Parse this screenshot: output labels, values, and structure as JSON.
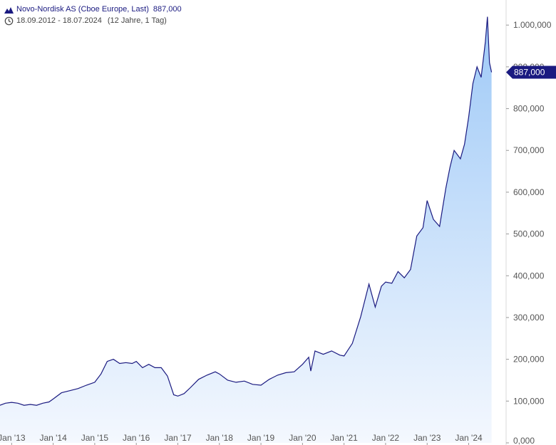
{
  "legend": {
    "series_name": "Novo-Nordisk AS (Cboe Europe, Last)",
    "last_value": "887,000",
    "date_range": "18.09.2012 - 18.07.2024",
    "duration": "(12 Jahre, 1 Tag)",
    "icons": [
      "mountain-chart-icon",
      "clock-icon"
    ]
  },
  "colors": {
    "line": "#1a1a80",
    "fill_top": "#9ec9f7",
    "fill_bottom": "#f4f8fe",
    "price_label_bg": "#1a1a80",
    "grid": "#d8d8d8",
    "axis_text": "#555555"
  },
  "chart_data": {
    "type": "area",
    "title": "Novo-Nordisk AS (Cboe Europe, Last)",
    "last_value": 887,
    "last_value_label": "887,000",
    "x_start": "2012-09-18",
    "x_end": "2024-07-18",
    "xlim": [
      2012.72,
      2024.9
    ],
    "ylim": [
      0,
      1060
    ],
    "y_ticks": [
      0,
      100,
      200,
      300,
      400,
      500,
      600,
      700,
      800,
      900,
      1000
    ],
    "y_tick_labels": [
      "0,000",
      "100,000",
      "200,000",
      "300,000",
      "400,000",
      "500,000",
      "600,000",
      "700,000",
      "800,000",
      "900,000",
      "1.000,000"
    ],
    "x_ticks": [
      2013,
      2014,
      2015,
      2016,
      2017,
      2018,
      2019,
      2020,
      2021,
      2022,
      2023,
      2024
    ],
    "x_tick_labels": [
      "Jan '13",
      "Jan '14",
      "Jan '15",
      "Jan '16",
      "Jan '17",
      "Jan '18",
      "Jan '19",
      "Jan '20",
      "Jan '21",
      "Jan '22",
      "Jan '23",
      "Jan '24"
    ],
    "grid": false,
    "series": [
      {
        "name": "Novo-Nordisk AS (Cboe Europe, Last)",
        "x": [
          2012.72,
          2012.85,
          2013.0,
          2013.15,
          2013.3,
          2013.45,
          2013.6,
          2013.75,
          2013.9,
          2014.0,
          2014.2,
          2014.4,
          2014.6,
          2014.8,
          2015.0,
          2015.15,
          2015.3,
          2015.45,
          2015.6,
          2015.75,
          2015.9,
          2016.0,
          2016.15,
          2016.3,
          2016.45,
          2016.6,
          2016.75,
          2016.9,
          2017.0,
          2017.15,
          2017.3,
          2017.5,
          2017.7,
          2017.9,
          2018.0,
          2018.2,
          2018.4,
          2018.6,
          2018.8,
          2019.0,
          2019.2,
          2019.4,
          2019.6,
          2019.8,
          2020.0,
          2020.15,
          2020.2,
          2020.3,
          2020.5,
          2020.7,
          2020.9,
          2021.0,
          2021.2,
          2021.4,
          2021.6,
          2021.75,
          2021.9,
          2022.0,
          2022.15,
          2022.3,
          2022.45,
          2022.6,
          2022.75,
          2022.9,
          2023.0,
          2023.15,
          2023.3,
          2023.45,
          2023.55,
          2023.65,
          2023.8,
          2023.9,
          2024.0,
          2024.1,
          2024.2,
          2024.3,
          2024.4,
          2024.45,
          2024.5,
          2024.55
        ],
        "values": [
          90,
          95,
          97,
          95,
          90,
          92,
          90,
          95,
          98,
          105,
          120,
          125,
          130,
          138,
          145,
          165,
          195,
          200,
          190,
          192,
          190,
          195,
          180,
          188,
          180,
          180,
          160,
          115,
          112,
          118,
          132,
          152,
          162,
          170,
          165,
          150,
          145,
          148,
          140,
          138,
          152,
          162,
          168,
          170,
          188,
          205,
          172,
          220,
          212,
          220,
          210,
          208,
          238,
          302,
          380,
          325,
          375,
          385,
          382,
          410,
          395,
          415,
          495,
          515,
          580,
          535,
          518,
          610,
          660,
          700,
          680,
          715,
          780,
          860,
          900,
          875,
          960,
          1020,
          910,
          887
        ]
      }
    ]
  }
}
